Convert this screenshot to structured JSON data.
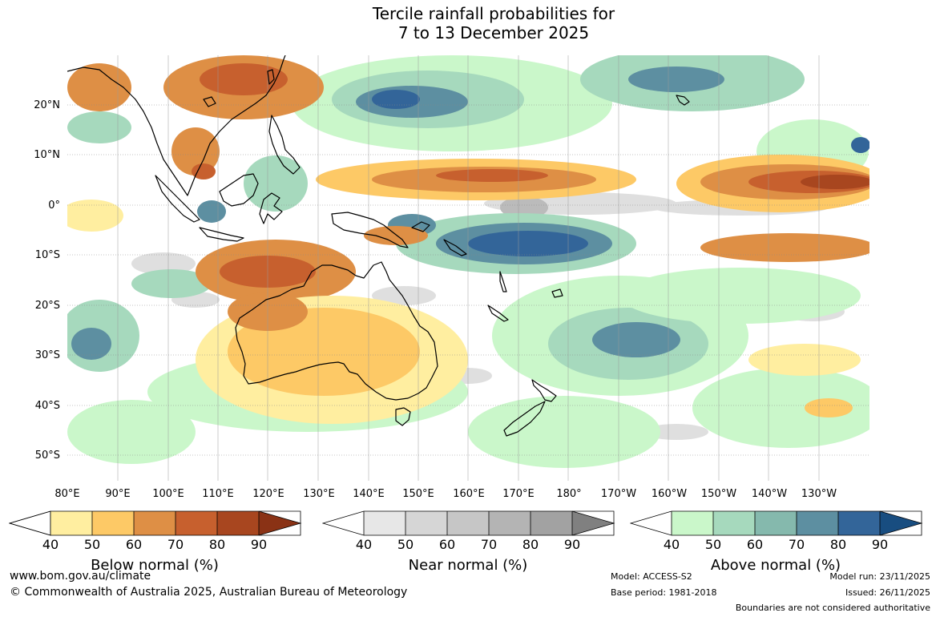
{
  "title": {
    "line1": "Tercile rainfall probabilities for",
    "line2": "7 to 13 December 2025"
  },
  "map": {
    "lat_labels": [
      "20°N",
      "10°N",
      "0°",
      "10°S",
      "20°S",
      "30°S",
      "40°S",
      "50°S"
    ],
    "lon_labels": [
      "80°E",
      "90°E",
      "100°E",
      "110°E",
      "120°E",
      "130°E",
      "140°E",
      "150°E",
      "160°E",
      "170°E",
      "180°",
      "170°W",
      "160°W",
      "150°W",
      "140°W",
      "130°W"
    ]
  },
  "legends": [
    {
      "label": "Below normal (%)",
      "ticks": [
        "40",
        "50",
        "60",
        "70",
        "80",
        "90"
      ],
      "colors": [
        "#ffeea0",
        "#fdc966",
        "#de8f45",
        "#c7602e",
        "#a8461f",
        "#8a3215"
      ]
    },
    {
      "label": "Near normal (%)",
      "ticks": [
        "40",
        "50",
        "60",
        "70",
        "80",
        "90"
      ],
      "colors": [
        "#e7e7e7",
        "#d6d6d6",
        "#c6c6c6",
        "#b4b4b4",
        "#a2a2a2",
        "#808080"
      ]
    },
    {
      "label": "Above normal (%)",
      "ticks": [
        "40",
        "50",
        "60",
        "70",
        "80",
        "90"
      ],
      "colors": [
        "#caf7ca",
        "#a6d9bd",
        "#85b9ad",
        "#5d8fa1",
        "#336599",
        "#184d80"
      ]
    }
  ],
  "footer": {
    "website": "www.bom.gov.au/climate",
    "copyright": "© Commonwealth of Australia 2025, Australian Bureau of Meteorology",
    "model": "Model: ACCESS-S2",
    "base_period": "Base period: 1981-2018",
    "model_run": "Model run: 23/11/2025",
    "issued": "Issued: 26/11/2025",
    "disclaimer": "Boundaries are not considered authoritative"
  }
}
